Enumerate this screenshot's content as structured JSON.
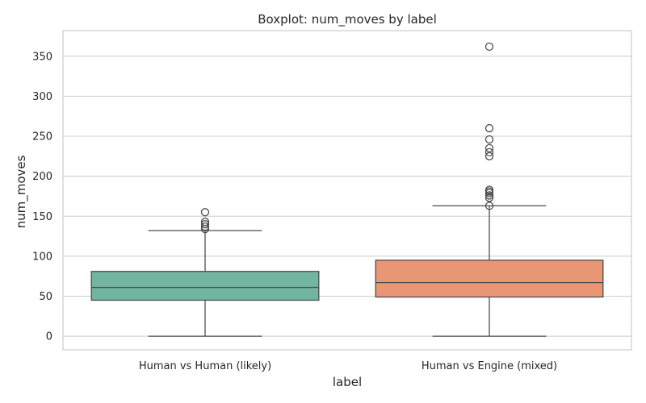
{
  "chart_data": {
    "type": "boxplot",
    "title": "Boxplot: num_moves by label",
    "xlabel": "label",
    "ylabel": "num_moves",
    "ylim": [
      -17,
      382
    ],
    "yticks": [
      0,
      50,
      100,
      150,
      200,
      250,
      300,
      350
    ],
    "grid": true,
    "categories": [
      "Human vs Human (likely)",
      "Human vs Engine (mixed)"
    ],
    "boxes": [
      {
        "category": "Human vs Human (likely)",
        "color": "#72b6a1",
        "whisker_low": 0,
        "q1": 45,
        "median": 61,
        "q3": 81,
        "whisker_high": 132,
        "fliers": [
          134,
          137,
          140,
          143,
          155
        ]
      },
      {
        "category": "Human vs Engine (mixed)",
        "color": "#e99675",
        "whisker_low": 0,
        "q1": 49,
        "median": 67,
        "q3": 95,
        "whisker_high": 163,
        "fliers": [
          163,
          173,
          176,
          179,
          181,
          183,
          225,
          230,
          235,
          246,
          260,
          362
        ]
      }
    ]
  }
}
